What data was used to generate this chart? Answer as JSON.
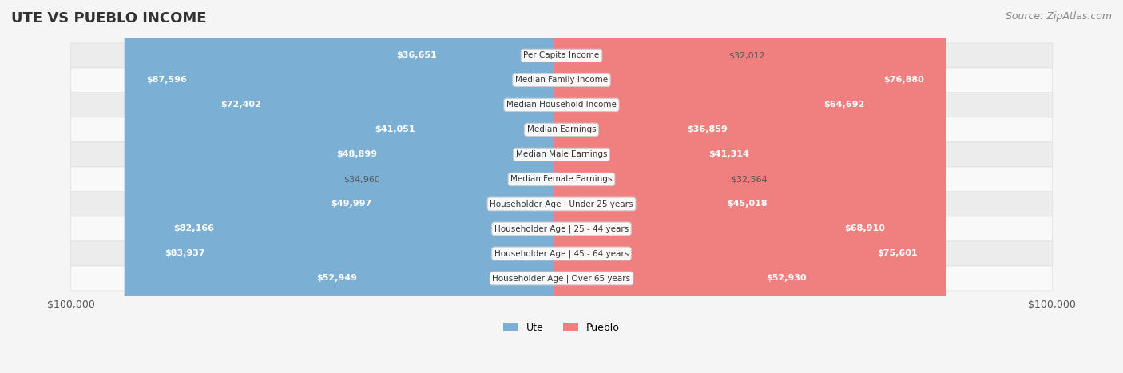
{
  "title": "UTE VS PUEBLO INCOME",
  "source": "Source: ZipAtlas.com",
  "categories": [
    "Per Capita Income",
    "Median Family Income",
    "Median Household Income",
    "Median Earnings",
    "Median Male Earnings",
    "Median Female Earnings",
    "Householder Age | Under 25 years",
    "Householder Age | 25 - 44 years",
    "Householder Age | 45 - 64 years",
    "Householder Age | Over 65 years"
  ],
  "ute_values": [
    36651,
    87596,
    72402,
    41051,
    48899,
    34960,
    49997,
    82166,
    83937,
    52949
  ],
  "pueblo_values": [
    32012,
    76880,
    64692,
    36859,
    41314,
    32564,
    45018,
    68910,
    75601,
    52930
  ],
  "max_value": 100000,
  "ute_color": "#7bafd4",
  "pueblo_color": "#f08080",
  "ute_color_strong": "#5b9ec9",
  "pueblo_color_strong": "#e8607a",
  "bg_color": "#f5f5f5",
  "row_bg_color": "#ececec",
  "row_bg_alt": "#f9f9f9",
  "label_bg": "#ffffff",
  "title_fontsize": 13,
  "source_fontsize": 9,
  "value_fontsize": 8,
  "category_fontsize": 7.5,
  "xlim": 100000,
  "ylabel_left": "$100,000",
  "ylabel_right": "$100,000"
}
